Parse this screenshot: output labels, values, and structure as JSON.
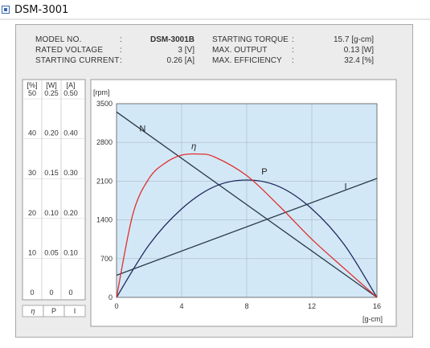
{
  "header": {
    "title": "DSM-3001",
    "icon": "square-bullet-icon"
  },
  "specs": {
    "left": [
      {
        "label": "MODEL NO.",
        "value": "DSM-3001B"
      },
      {
        "label": "RATED VOLTAGE",
        "value": "3 [V]"
      },
      {
        "label": "STARTING CURRENT",
        "value": "0.26 [A]"
      }
    ],
    "right": [
      {
        "label": "STARTING TORQUE",
        "value": "15.7 [g-cm]"
      },
      {
        "label": "MAX. OUTPUT",
        "value": "0.13 [W]"
      },
      {
        "label": "MAX. EFFICIENCY",
        "value": "32.4 [%]"
      }
    ]
  },
  "colors": {
    "plot_bg": "#d3e8f6",
    "efficiency": "#e03030",
    "output": "#1f2a5e",
    "speed": "#2a3a4a",
    "current": "#2a3a4a"
  },
  "chart_data": {
    "type": "line",
    "xlabel": "[g-cm]",
    "ylabel": "[rpm]",
    "xlim": [
      0,
      16
    ],
    "ylim": [
      0,
      3500
    ],
    "x_ticks": [
      "0",
      "4",
      "8",
      "12",
      "16"
    ],
    "y_ticks": [
      "0",
      "700",
      "1400",
      "2100",
      "2800",
      "3500"
    ],
    "secondary_axes": [
      {
        "unit": "[%]",
        "ticks": [
          "0",
          "10",
          "20",
          "30",
          "40",
          "50"
        ]
      },
      {
        "unit": "[W]",
        "ticks": [
          "0",
          "0.05",
          "0.10",
          "0.15",
          "0.20",
          "0.25"
        ]
      },
      {
        "unit": "[A]",
        "ticks": [
          "0",
          "0.10",
          "0.20",
          "0.30",
          "0.40",
          "0.50"
        ]
      }
    ],
    "legend": [
      "η",
      "P",
      "I"
    ],
    "grid": true,
    "series": [
      {
        "name": "N",
        "x": [
          0,
          16
        ],
        "y": [
          3350,
          0
        ]
      },
      {
        "name": "I",
        "x": [
          0,
          16
        ],
        "y": [
          400,
          2150
        ]
      },
      {
        "name": "P",
        "x": [
          0,
          2,
          4,
          6,
          8,
          10,
          12,
          14,
          16
        ],
        "y": [
          0,
          950,
          1600,
          2000,
          2120,
          2000,
          1600,
          950,
          0
        ]
      },
      {
        "name": "η",
        "x": [
          0,
          1,
          2,
          3,
          4,
          5,
          6,
          8,
          10,
          12,
          14,
          16
        ],
        "y": [
          0,
          1500,
          2150,
          2430,
          2570,
          2590,
          2540,
          2200,
          1650,
          1050,
          520,
          0
        ]
      }
    ]
  }
}
